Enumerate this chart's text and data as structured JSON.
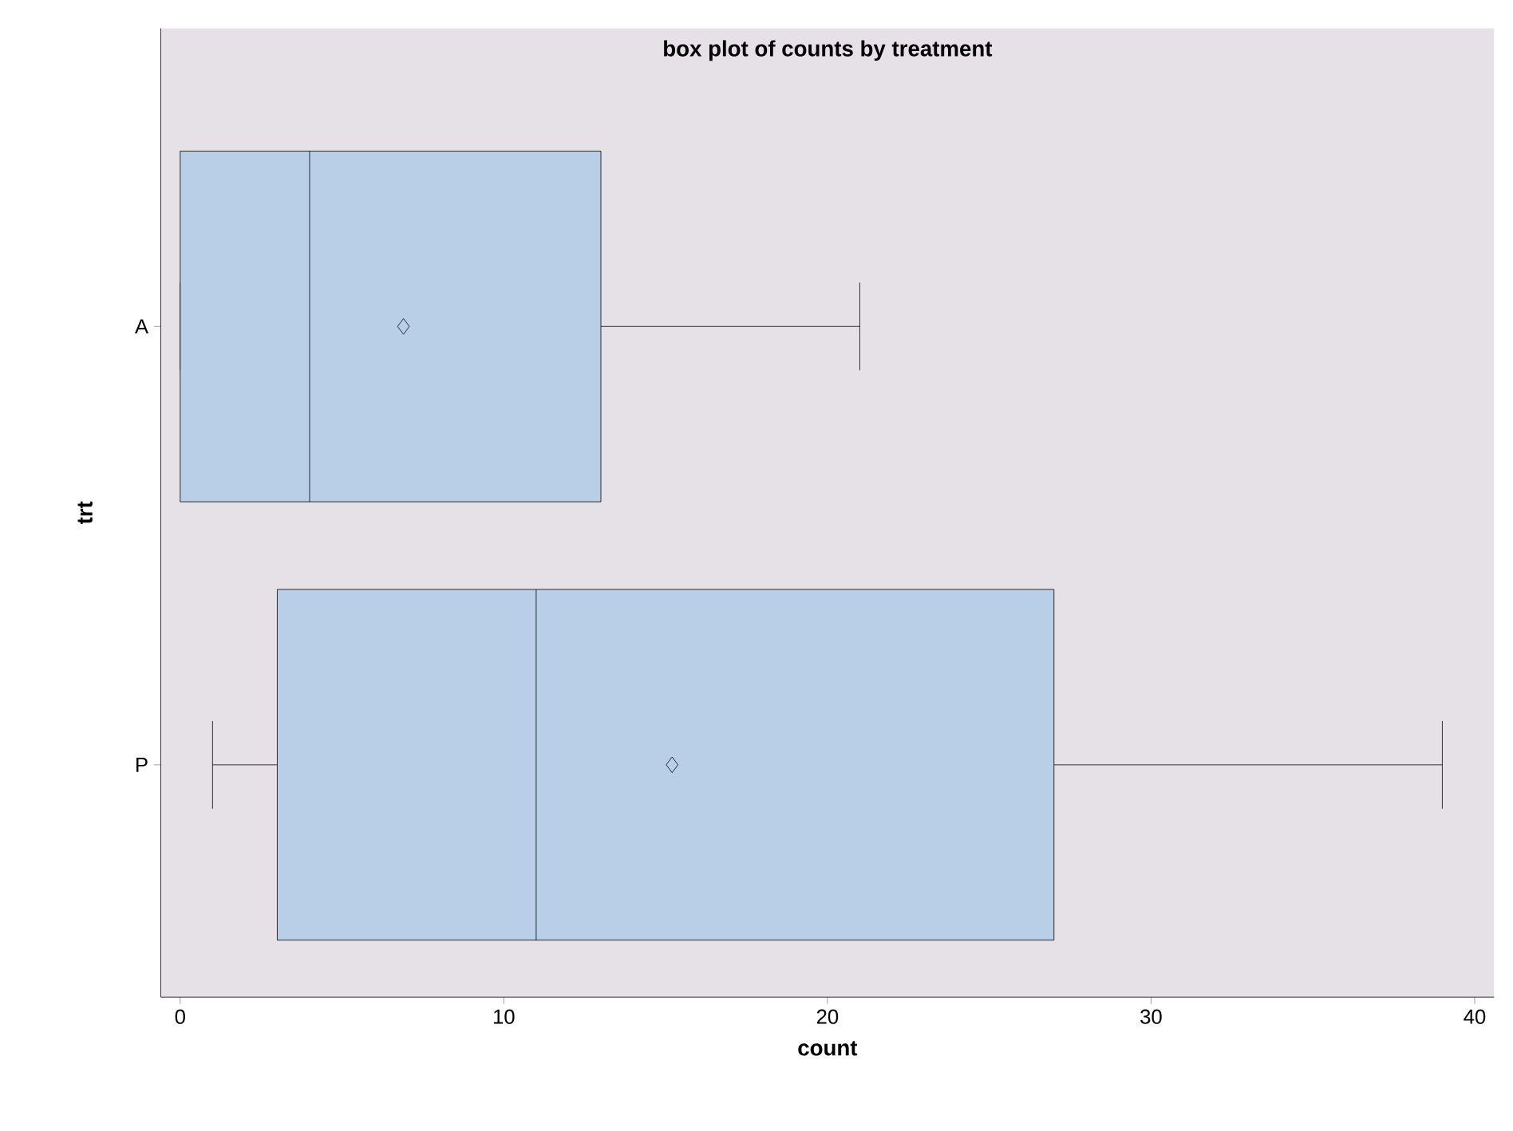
{
  "chart_data": {
    "type": "box",
    "title": "box plot of counts by treatment",
    "xlabel": "count",
    "ylabel": "trt",
    "orientation": "horizontal",
    "categories": [
      "A",
      "P"
    ],
    "boxes": [
      {
        "low": 0,
        "q1": 0,
        "median": 4,
        "q3": 13,
        "high": 21,
        "mean": 6.9
      },
      {
        "low": 1,
        "q1": 3,
        "median": 11,
        "q3": 27,
        "high": 39,
        "mean": 15.2
      }
    ],
    "color": "#b9cfe7",
    "xlim": [
      -0.6,
      40.6
    ],
    "xticks": [
      0,
      10,
      20,
      30,
      40
    ],
    "marker": "diamond"
  }
}
